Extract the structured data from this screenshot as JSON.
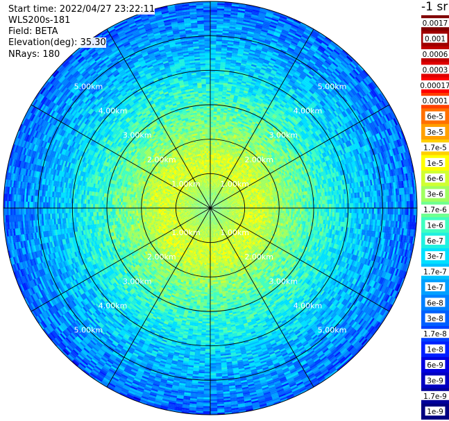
{
  "header": {
    "start_time": "Start time: 2022/04/27 23:22:11",
    "site": "WLS200s-181",
    "field": "Field: BETA",
    "elevation": "Elevation(deg): 35.30",
    "nrays": "NRays: 180"
  },
  "colorbar": {
    "unit_label": "-1 sr",
    "ticks": [
      "0.0017",
      "0.001",
      "0.0006",
      "0.0003",
      "0.00017",
      "0.0001",
      "6e-5",
      "3e-5",
      "1.7e-5",
      "1e-5",
      "6e-6",
      "3e-6",
      "1.7e-6",
      "1e-6",
      "6e-7",
      "3e-7",
      "1.7e-7",
      "1e-7",
      "6e-8",
      "3e-8",
      "1.7e-8",
      "1e-8",
      "6e-9",
      "3e-9",
      "1.7e-9",
      "1e-9"
    ],
    "colors": [
      "#800000",
      "#a00000",
      "#c00000",
      "#e00000",
      "#ff0000",
      "#ff4000",
      "#ff7000",
      "#ffa000",
      "#ffd000",
      "#ffff00",
      "#d0ff30",
      "#a0ff60",
      "#70ff90",
      "#40ffc0",
      "#20f0e0",
      "#00e0ff",
      "#00c0ff",
      "#00a0ff",
      "#0080ff",
      "#0060ff",
      "#0040ff",
      "#0020ff",
      "#0000e0",
      "#0000c0",
      "#00009a",
      "#000080"
    ]
  },
  "chart_data": {
    "type": "heatmap",
    "projection": "polar-ppi",
    "field": "BETA",
    "range_rings_km": [
      1,
      2,
      3,
      4,
      5
    ],
    "range_ring_labels": [
      "1.00km",
      "2.00km",
      "3.00km",
      "4.00km",
      "5.00km"
    ],
    "max_range_km": 6.0,
    "spokes_deg": [
      0,
      30,
      60,
      90,
      120,
      150,
      180,
      210,
      240,
      270,
      300,
      330
    ],
    "nrays": 180,
    "radial_profile": [
      {
        "range_km": 0.0,
        "value": 1.7e-06
      },
      {
        "range_km": 0.5,
        "value": 3e-06
      },
      {
        "range_km": 1.0,
        "value": 6e-06
      },
      {
        "range_km": 1.5,
        "value": 6e-06
      },
      {
        "range_km": 2.0,
        "value": 3e-06
      },
      {
        "range_km": 2.5,
        "value": 1.7e-06
      },
      {
        "range_km": 3.0,
        "value": 1e-06
      },
      {
        "range_km": 3.5,
        "value": 6e-07
      },
      {
        "range_km": 4.0,
        "value": 3e-07
      },
      {
        "range_km": 4.5,
        "value": 1.7e-07
      },
      {
        "range_km": 5.0,
        "value": 1e-07
      },
      {
        "range_km": 5.5,
        "value": 6e-08
      },
      {
        "range_km": 6.0,
        "value": 3e-08
      }
    ]
  }
}
